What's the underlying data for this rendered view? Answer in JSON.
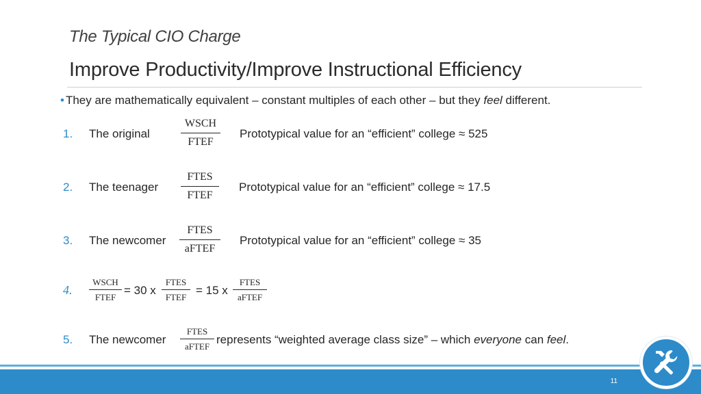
{
  "header": {
    "subtitle": "The Typical CIO Charge",
    "title": "Improve Productivity/Improve Instructional Efficiency"
  },
  "bullet": {
    "marker": "•",
    "text_before": "They are mathematically equivalent – constant multiples of each other – but they ",
    "emphasis": "feel",
    "text_after": " different."
  },
  "items": [
    {
      "number": "1.",
      "label": "The original",
      "numerator": "WSCH",
      "denominator": "FTEF",
      "note": "Prototypical value for an “efficient” college ≈ 525"
    },
    {
      "number": "2.",
      "label": "The teenager",
      "numerator": "FTES",
      "denominator": "FTEF",
      "note": "Prototypical value for an “efficient” college ≈ 17.5"
    },
    {
      "number": "3.",
      "label": "The newcomer",
      "numerator": "FTES",
      "denominator": "aFTEF",
      "note": "Prototypical value for an “efficient” college ≈ 35"
    }
  ],
  "equation": {
    "number": "4.",
    "frac1": {
      "numerator": "WSCH",
      "denominator": "FTEF"
    },
    "op1": "= 30 x",
    "frac2": {
      "numerator": "FTES",
      "denominator": "FTEF"
    },
    "op2": "= 15 x",
    "frac3": {
      "numerator": "FTES",
      "denominator": "aFTEF"
    }
  },
  "item5": {
    "number": "5.",
    "label": "The newcomer",
    "numerator": "FTES",
    "denominator": "aFTEF",
    "text_before": "represents “weighted average class size” – which ",
    "emphasis1": "everyone",
    "text_middle": " can ",
    "emphasis2": "feel",
    "text_after": "."
  },
  "footer": {
    "page_number": "11",
    "badge_icon": "tools-icon"
  },
  "colors": {
    "accent": "#2e8bc9",
    "text": "#262626"
  }
}
